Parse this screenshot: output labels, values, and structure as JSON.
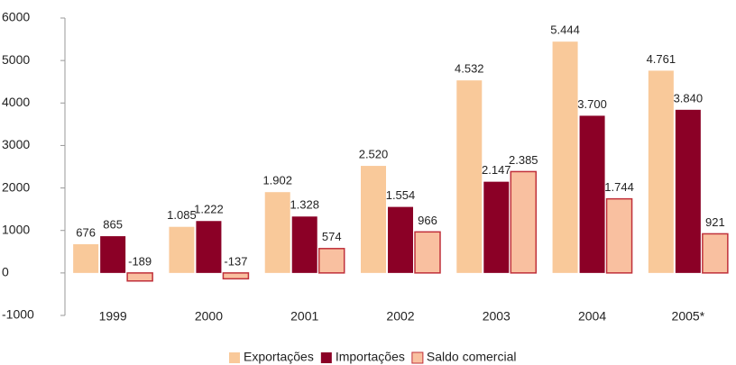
{
  "chart_data": {
    "type": "bar",
    "categories": [
      "1999",
      "2000",
      "2001",
      "2002",
      "2003",
      "2004",
      "2005*"
    ],
    "series": [
      {
        "name": "Exportações",
        "color": "#f9c99a",
        "values": [
          676,
          1085,
          1902,
          2520,
          4532,
          5444,
          4761
        ],
        "value_labels": [
          "676",
          "1.085",
          "1.902",
          "2.520",
          "4.532",
          "5.444",
          "4.761"
        ]
      },
      {
        "name": "Importações",
        "color": "#8b0026",
        "values": [
          865,
          1222,
          1328,
          1554,
          2147,
          3700,
          3840
        ],
        "value_labels": [
          "865",
          "1.222",
          "1.328",
          "1.554",
          "2.147",
          "3.700",
          "3.840"
        ]
      },
      {
        "name": "Saldo comercial",
        "color": "#f9c0a0",
        "edge_color": "#c0303a",
        "values": [
          -189,
          -137,
          574,
          966,
          2385,
          1744,
          921
        ],
        "value_labels": [
          "-189",
          "-137",
          "574",
          "966",
          "2.385",
          "1.744",
          "921"
        ]
      }
    ],
    "ylim": [
      -1000,
      6000
    ],
    "yticks": [
      -1000,
      0,
      1000,
      2000,
      3000,
      4000,
      5000,
      6000
    ],
    "legend": "bottom"
  }
}
